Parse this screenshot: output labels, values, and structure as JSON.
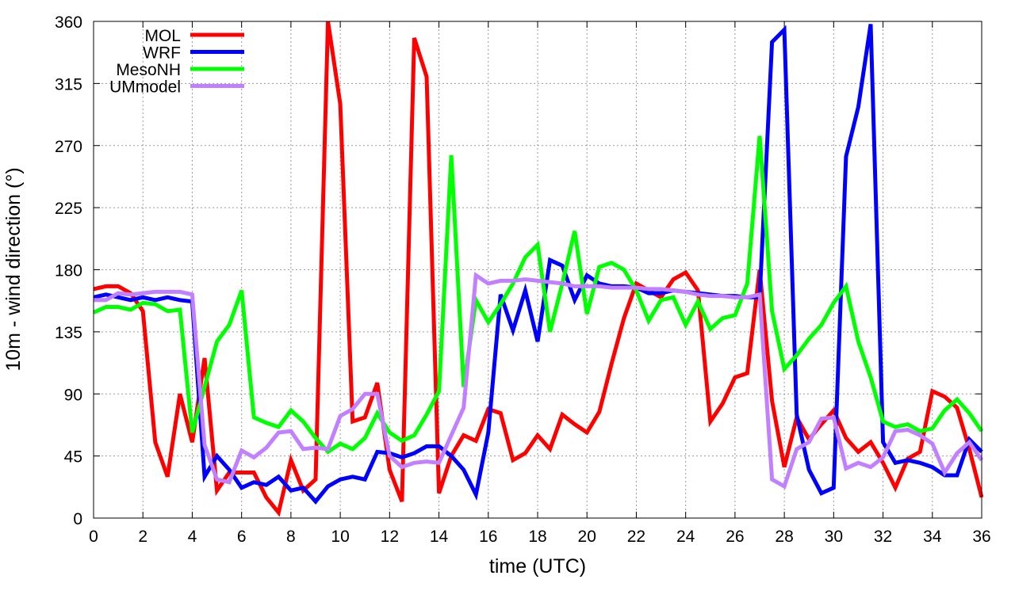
{
  "chart_data": {
    "type": "line",
    "title": "",
    "xlabel": "time (UTC)",
    "ylabel": "10m - wind direction (°)",
    "xlim": [
      0,
      36
    ],
    "ylim": [
      0,
      360
    ],
    "xticks": [
      0,
      2,
      4,
      6,
      8,
      10,
      12,
      14,
      16,
      18,
      20,
      22,
      24,
      26,
      28,
      30,
      32,
      34,
      36
    ],
    "yticks": [
      0,
      45,
      90,
      135,
      180,
      225,
      270,
      315,
      360
    ],
    "grid": true,
    "legend_position": "top-left",
    "x_step": 0.5,
    "series": [
      {
        "name": "MOL",
        "color": "#ff0000",
        "values": [
          166,
          168,
          168,
          163,
          150,
          55,
          30,
          90,
          55,
          116,
          20,
          33,
          33,
          33,
          15,
          4,
          42,
          20,
          28,
          360,
          300,
          70,
          73,
          98,
          35,
          12,
          348,
          320,
          18,
          45,
          60,
          56,
          79,
          76,
          42,
          47,
          60,
          50,
          75,
          68,
          62,
          77,
          112,
          145,
          170,
          165,
          160,
          173,
          178,
          165,
          70,
          83,
          102,
          105,
          180,
          85,
          37,
          73,
          57,
          68,
          78,
          58,
          48,
          55,
          40,
          22,
          43,
          48,
          92,
          88,
          80,
          50,
          15
        ]
      },
      {
        "name": "WRF",
        "color": "#0000ff",
        "values": [
          160,
          162,
          160,
          158,
          160,
          158,
          160,
          158,
          157,
          30,
          45,
          35,
          22,
          26,
          24,
          30,
          20,
          22,
          12,
          23,
          28,
          30,
          28,
          48,
          47,
          44,
          47,
          52,
          52,
          45,
          35,
          17,
          62,
          162,
          136,
          165,
          128,
          187,
          183,
          158,
          176,
          170,
          168,
          168,
          167,
          163,
          163,
          165,
          164,
          163,
          162,
          161,
          161,
          160,
          160,
          345,
          354,
          75,
          35,
          18,
          22,
          262,
          298,
          358,
          55,
          40,
          42,
          40,
          37,
          31,
          31,
          57,
          48
        ]
      },
      {
        "name": "MesoNH",
        "color": "#00ff00",
        "values": [
          149,
          153,
          153,
          151,
          156,
          155,
          150,
          151,
          62,
          95,
          128,
          140,
          165,
          73,
          69,
          66,
          78,
          70,
          58,
          48,
          54,
          50,
          58,
          76,
          62,
          56,
          60,
          75,
          92,
          263,
          95,
          158,
          142,
          155,
          170,
          189,
          198,
          135,
          170,
          208,
          148,
          182,
          185,
          180,
          165,
          143,
          158,
          160,
          140,
          157,
          137,
          145,
          147,
          170,
          277,
          150,
          108,
          118,
          130,
          140,
          156,
          168,
          128,
          102,
          70,
          66,
          68,
          63,
          65,
          78,
          86,
          76,
          63
        ]
      },
      {
        "name": "UMmodel",
        "color": "#c080ff",
        "values": [
          158,
          158,
          163,
          162,
          163,
          164,
          164,
          164,
          162,
          53,
          28,
          26,
          49,
          44,
          51,
          62,
          63,
          50,
          51,
          50,
          74,
          79,
          90,
          90,
          45,
          37,
          40,
          41,
          40,
          60,
          80,
          176,
          170,
          172,
          172,
          173,
          172,
          171,
          170,
          168,
          168,
          168,
          167,
          167,
          167,
          166,
          166,
          165,
          164,
          162,
          161,
          161,
          160,
          160,
          162,
          28,
          23,
          50,
          55,
          72,
          73,
          36,
          40,
          37,
          44,
          63,
          64,
          60,
          54,
          33,
          47,
          55,
          42
        ]
      }
    ]
  }
}
